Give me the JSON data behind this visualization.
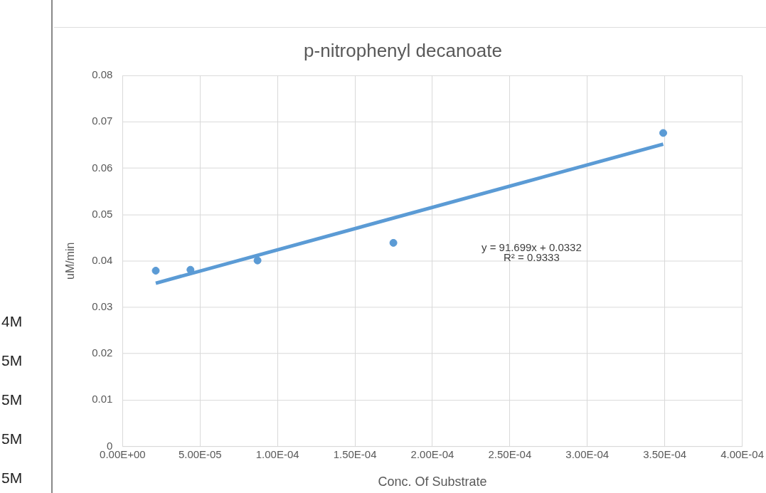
{
  "chart_data": {
    "type": "scatter",
    "title": "p-nitrophenyl decanoate",
    "xlabel": "Conc. Of Substrate",
    "ylabel": "uM/min",
    "series": [
      {
        "color": "#5b9bd5",
        "marker": "circle",
        "x": [
          2.14e-05,
          4.38e-05,
          8.71e-05,
          0.0001748,
          0.000349
        ],
        "values": [
          0.0379,
          0.0381,
          0.0401,
          0.0439,
          0.0676
        ]
      },
      {
        "type": "line",
        "color": "#5b9bd5",
        "x": [
          2.14e-05,
          0.000349
        ],
        "values": [
          0.0352,
          0.0652
        ]
      }
    ],
    "xlim": [
      0,
      0.0004
    ],
    "xticks": [
      {
        "value": 0,
        "label": "0.00E+00"
      },
      {
        "value": 5e-05,
        "label": "5.00E-05"
      },
      {
        "value": 0.0001,
        "label": "1.00E-04"
      },
      {
        "value": 0.00015,
        "label": "1.50E-04"
      },
      {
        "value": 0.0002,
        "label": "2.00E-04"
      },
      {
        "value": 0.00025,
        "label": "2.50E-04"
      },
      {
        "value": 0.0003,
        "label": "3.00E-04"
      },
      {
        "value": 0.00035,
        "label": "3.50E-04"
      },
      {
        "value": 0.0004,
        "label": "4.00E-04"
      }
    ],
    "ylim": [
      0,
      0.08
    ],
    "yticks": [
      0,
      0.01,
      0.02,
      0.03,
      0.04,
      0.05,
      0.06,
      0.07,
      0.08
    ],
    "grid": true,
    "annotations": [
      "y = 91.699x + 0.0332",
      "R² = 0.9333",
      "4M",
      "5M",
      "5M",
      "5M",
      "5M"
    ]
  }
}
